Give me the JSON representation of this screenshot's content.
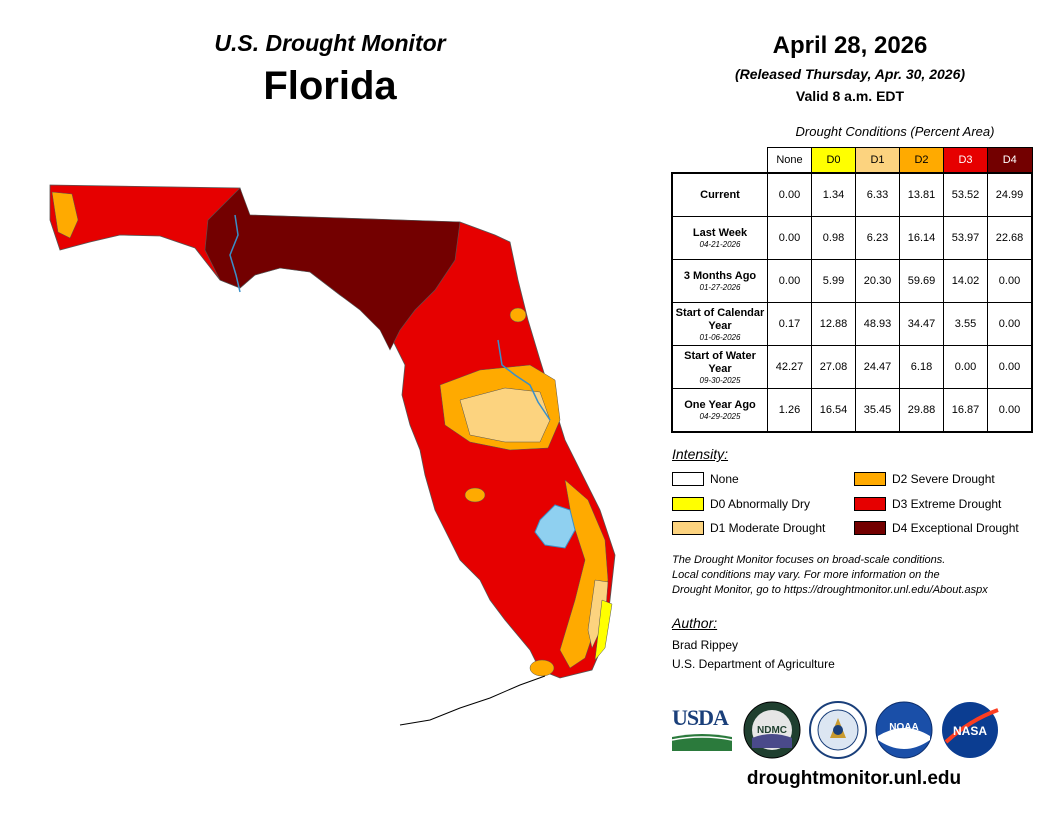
{
  "header": {
    "subtitle": "U.S. Drought Monitor",
    "state": "Florida"
  },
  "info": {
    "date": "April 28, 2026",
    "released": "(Released Thursday, Apr. 30, 2026)",
    "valid": "Valid 8 a.m. EDT"
  },
  "table": {
    "caption": "Drought Conditions (Percent Area)",
    "columns": [
      "None",
      "D0",
      "D1",
      "D2",
      "D3",
      "D4"
    ],
    "column_colors": [
      "#ffffff",
      "#ffff00",
      "#fcd37f",
      "#ffaa00",
      "#e60000",
      "#730000"
    ],
    "rows": [
      {
        "label": "Current",
        "date": "",
        "values": [
          "0.00",
          "1.34",
          "6.33",
          "13.81",
          "53.52",
          "24.99"
        ]
      },
      {
        "label": "Last Week",
        "date": "04-21-2026",
        "values": [
          "0.00",
          "0.98",
          "6.23",
          "16.14",
          "53.97",
          "22.68"
        ]
      },
      {
        "label": "3 Months Ago",
        "date": "01-27-2026",
        "values": [
          "0.00",
          "5.99",
          "20.30",
          "59.69",
          "14.02",
          "0.00"
        ]
      },
      {
        "label": "Start of Calendar Year",
        "date": "01-06-2026",
        "values": [
          "0.17",
          "12.88",
          "48.93",
          "34.47",
          "3.55",
          "0.00"
        ]
      },
      {
        "label": "Start of Water Year",
        "date": "09-30-2025",
        "values": [
          "42.27",
          "27.08",
          "24.47",
          "6.18",
          "0.00",
          "0.00"
        ]
      },
      {
        "label": "One Year Ago",
        "date": "04-29-2025",
        "values": [
          "1.26",
          "16.54",
          "35.45",
          "29.88",
          "16.87",
          "0.00"
        ]
      }
    ]
  },
  "legend": {
    "title": "Intensity:",
    "items": [
      {
        "label": "None",
        "color": "#ffffff"
      },
      {
        "label": "D0 Abnormally Dry",
        "color": "#ffff00"
      },
      {
        "label": "D1 Moderate Drought",
        "color": "#fcd37f"
      },
      {
        "label": "D2 Severe Drought",
        "color": "#ffaa00"
      },
      {
        "label": "D3 Extreme Drought",
        "color": "#e60000"
      },
      {
        "label": "D4 Exceptional Drought",
        "color": "#730000"
      }
    ]
  },
  "note": {
    "line1": "The Drought Monitor focuses on broad-scale conditions.",
    "line2": "Local conditions may vary. For more information on the",
    "line3": "Drought Monitor, go to https://droughtmonitor.unl.edu/About.aspx"
  },
  "author": {
    "title": "Author:",
    "name": "Brad Rippey",
    "org": "U.S. Department of Agriculture"
  },
  "logos": {
    "usda": "USDA",
    "ndmc": "NDMC",
    "noaa": "NOAA",
    "nasa": "NASA"
  },
  "footer": {
    "site": "droughtmonitor.unl.edu"
  }
}
